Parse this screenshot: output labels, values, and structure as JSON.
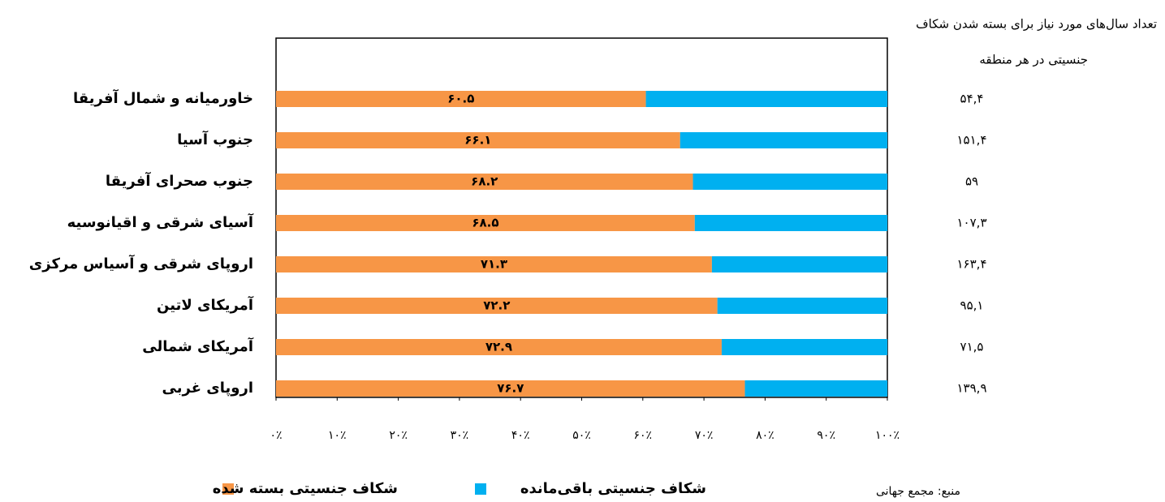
{
  "chart_data": {
    "type": "bar",
    "categories": [
      "خاورمیانه و شمال آفریقا",
      "جنوب آسیا",
      "جنوب صحرای آفریقا",
      "آسیای شرقی و اقیانوسیه",
      "اروپای شرقی و آسیاس مرکزی",
      "آمریکای لاتین",
      "آمریکای شمالی",
      "اروپای غربی"
    ],
    "series": [
      {
        "name": "شکاف جنسیتی بسته شده",
        "color": "#f79646",
        "values": [
          60.5,
          66.1,
          68.2,
          68.5,
          71.3,
          72.2,
          72.9,
          76.7
        ],
        "value_labels": [
          "۶۰.۵",
          "۶۶.۱",
          "۶۸.۲",
          "۶۸.۵",
          "۷۱.۳",
          "۷۲.۲",
          "۷۲.۹",
          "۷۶.۷"
        ]
      },
      {
        "name": "شکاف جنسیتی باقی‌مانده",
        "color": "#00b0f0",
        "values": [
          39.5,
          33.9,
          31.8,
          31.5,
          28.7,
          27.8,
          27.1,
          23.3
        ]
      }
    ],
    "xlim": [
      0,
      100
    ],
    "xticks": [
      {
        "value": 0,
        "label": "۰٪"
      },
      {
        "value": 10,
        "label": "۱۰٪"
      },
      {
        "value": 20,
        "label": "۲۰٪"
      },
      {
        "value": 30,
        "label": "۳۰٪"
      },
      {
        "value": 40,
        "label": "۴۰٪"
      },
      {
        "value": 50,
        "label": "۵۰٪"
      },
      {
        "value": 60,
        "label": "۶۰٪"
      },
      {
        "value": 70,
        "label": "۷۰٪"
      },
      {
        "value": 80,
        "label": "۸۰٪"
      },
      {
        "value": 90,
        "label": "۹۰٪"
      },
      {
        "value": 100,
        "label": "۱۰۰٪"
      }
    ],
    "side_table": {
      "title": [
        "تعداد سال‌های مورد نیاز برای بسته شدن شکاف",
        "جنسیتی در هر منطقه"
      ],
      "values": [
        54.4,
        151.4,
        59,
        107.3,
        163.4,
        95.1,
        71.5,
        139.9
      ],
      "value_labels": [
        "۵۴,۴",
        "۱۵۱,۴",
        "۵۹",
        "۱۰۷,۳",
        "۱۶۳,۴",
        "۹۵,۱",
        "۷۱,۵",
        "۱۳۹,۹"
      ]
    },
    "source": "منبع: مجمع جهانی"
  }
}
